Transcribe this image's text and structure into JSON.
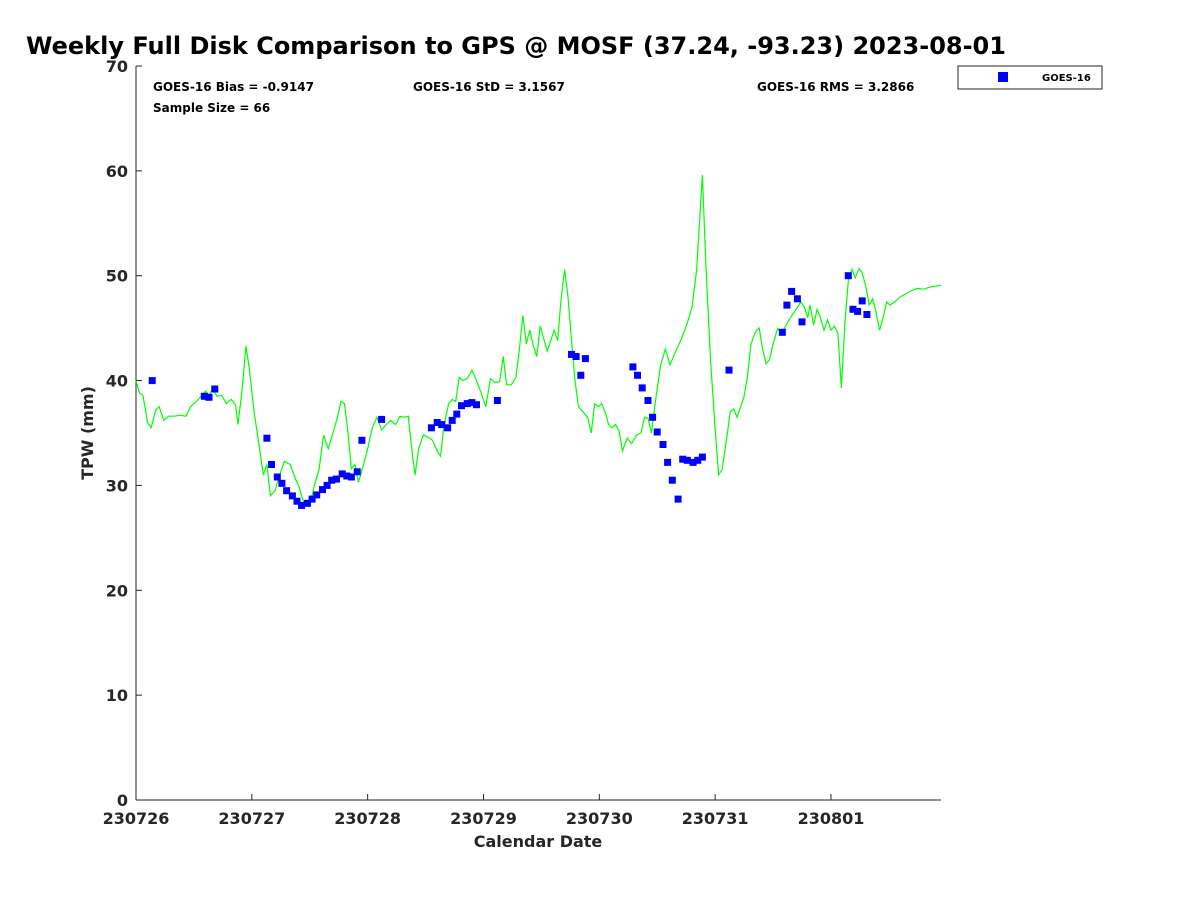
{
  "chart_data": {
    "type": "scatter",
    "title": "Weekly Full Disk Comparison to GPS @ MOSF (37.24, -93.23) 2023-08-01",
    "xlabel": "Calendar Date",
    "ylabel": "TPW (mm)",
    "xlim": [
      0,
      6.95
    ],
    "ylim": [
      0,
      70
    ],
    "x_ticks": [
      0,
      1,
      2,
      3,
      4,
      5,
      6
    ],
    "x_tick_labels": [
      "230726",
      "230727",
      "230728",
      "230729",
      "230730",
      "230731",
      "230801"
    ],
    "y_ticks": [
      0,
      10,
      20,
      30,
      40,
      50,
      60,
      70
    ],
    "y_tick_labels": [
      "0",
      "10",
      "20",
      "30",
      "40",
      "50",
      "60",
      "70"
    ],
    "stats": {
      "bias": "GOES-16 Bias = -0.9147",
      "std": "GOES-16 StD = 3.1567",
      "rms": "GOES-16 RMS = 3.2866",
      "sample_size": "Sample Size = 66"
    },
    "legend": {
      "label": "GOES-16",
      "position": "top-right-outside"
    },
    "colors": {
      "gps_line": "#00ff00",
      "goes_points": "#0000ff"
    },
    "series": [
      {
        "name": "GPS",
        "style": "line",
        "points": [
          [
            0.0,
            40.0
          ],
          [
            0.03,
            38.8
          ],
          [
            0.06,
            38.6
          ],
          [
            0.1,
            36.0
          ],
          [
            0.13,
            35.5
          ],
          [
            0.17,
            37.2
          ],
          [
            0.2,
            37.5
          ],
          [
            0.24,
            36.2
          ],
          [
            0.28,
            36.6
          ],
          [
            0.33,
            36.6
          ],
          [
            0.38,
            36.7
          ],
          [
            0.43,
            36.6
          ],
          [
            0.47,
            37.5
          ],
          [
            0.52,
            38.0
          ],
          [
            0.57,
            38.6
          ],
          [
            0.6,
            39.0
          ],
          [
            0.63,
            38.6
          ],
          [
            0.66,
            39.2
          ],
          [
            0.7,
            38.5
          ],
          [
            0.74,
            38.6
          ],
          [
            0.78,
            37.8
          ],
          [
            0.82,
            38.2
          ],
          [
            0.86,
            37.7
          ],
          [
            0.88,
            35.8
          ],
          [
            0.91,
            38.5
          ],
          [
            0.95,
            43.3
          ],
          [
            0.98,
            41.0
          ],
          [
            1.02,
            37.0
          ],
          [
            1.06,
            34.0
          ],
          [
            1.1,
            31.0
          ],
          [
            1.13,
            32.0
          ],
          [
            1.16,
            29.0
          ],
          [
            1.2,
            29.5
          ],
          [
            1.24,
            31.0
          ],
          [
            1.28,
            32.3
          ],
          [
            1.33,
            32.0
          ],
          [
            1.37,
            30.8
          ],
          [
            1.41,
            29.8
          ],
          [
            1.45,
            28.3
          ],
          [
            1.5,
            28.0
          ],
          [
            1.54,
            30.0
          ],
          [
            1.58,
            31.5
          ],
          [
            1.62,
            34.8
          ],
          [
            1.66,
            33.5
          ],
          [
            1.7,
            35.0
          ],
          [
            1.74,
            36.5
          ],
          [
            1.77,
            38.0
          ],
          [
            1.8,
            37.8
          ],
          [
            1.83,
            35.0
          ],
          [
            1.86,
            31.6
          ],
          [
            1.89,
            32.0
          ],
          [
            1.92,
            30.3
          ],
          [
            1.96,
            31.8
          ],
          [
            2.0,
            33.5
          ],
          [
            2.04,
            35.5
          ],
          [
            2.08,
            36.5
          ],
          [
            2.12,
            35.3
          ],
          [
            2.16,
            35.8
          ],
          [
            2.2,
            36.2
          ],
          [
            2.24,
            35.8
          ],
          [
            2.28,
            36.6
          ],
          [
            2.32,
            36.5
          ],
          [
            2.35,
            36.6
          ],
          [
            2.38,
            33.5
          ],
          [
            2.41,
            31.0
          ],
          [
            2.44,
            33.5
          ],
          [
            2.48,
            34.8
          ],
          [
            2.52,
            34.6
          ],
          [
            2.56,
            34.3
          ],
          [
            2.6,
            33.3
          ],
          [
            2.63,
            32.8
          ],
          [
            2.66,
            35.8
          ],
          [
            2.7,
            37.8
          ],
          [
            2.73,
            38.2
          ],
          [
            2.76,
            38.0
          ],
          [
            2.79,
            40.3
          ],
          [
            2.82,
            40.0
          ],
          [
            2.86,
            40.2
          ],
          [
            2.9,
            41.0
          ],
          [
            2.94,
            40.0
          ],
          [
            2.98,
            38.8
          ],
          [
            3.02,
            37.5
          ],
          [
            3.06,
            40.2
          ],
          [
            3.1,
            39.8
          ],
          [
            3.14,
            39.9
          ],
          [
            3.17,
            42.3
          ],
          [
            3.2,
            39.6
          ],
          [
            3.24,
            39.6
          ],
          [
            3.28,
            40.3
          ],
          [
            3.31,
            43.0
          ],
          [
            3.34,
            46.2
          ],
          [
            3.37,
            43.5
          ],
          [
            3.4,
            44.8
          ],
          [
            3.43,
            43.3
          ],
          [
            3.46,
            42.3
          ],
          [
            3.49,
            45.2
          ],
          [
            3.52,
            44.0
          ],
          [
            3.55,
            42.8
          ],
          [
            3.58,
            43.8
          ],
          [
            3.61,
            44.8
          ],
          [
            3.64,
            43.8
          ],
          [
            3.67,
            47.8
          ],
          [
            3.7,
            50.6
          ],
          [
            3.73,
            48.0
          ],
          [
            3.76,
            43.8
          ],
          [
            3.79,
            40.0
          ],
          [
            3.82,
            37.5
          ],
          [
            3.86,
            37.0
          ],
          [
            3.9,
            36.5
          ],
          [
            3.93,
            35.0
          ],
          [
            3.96,
            37.8
          ],
          [
            3.99,
            37.5
          ],
          [
            4.02,
            37.8
          ],
          [
            4.05,
            37.0
          ],
          [
            4.08,
            35.8
          ],
          [
            4.11,
            35.5
          ],
          [
            4.14,
            35.8
          ],
          [
            4.17,
            35.2
          ],
          [
            4.2,
            33.3
          ],
          [
            4.24,
            34.5
          ],
          [
            4.28,
            34.0
          ],
          [
            4.32,
            34.8
          ],
          [
            4.36,
            35.0
          ],
          [
            4.39,
            36.5
          ],
          [
            4.42,
            36.4
          ],
          [
            4.45,
            35.0
          ],
          [
            4.49,
            38.5
          ],
          [
            4.53,
            41.5
          ],
          [
            4.57,
            43.0
          ],
          [
            4.61,
            41.5
          ],
          [
            4.66,
            42.8
          ],
          [
            4.71,
            44.0
          ],
          [
            4.76,
            45.5
          ],
          [
            4.8,
            47.0
          ],
          [
            4.84,
            50.5
          ],
          [
            4.87,
            56.0
          ],
          [
            4.89,
            59.6
          ],
          [
            4.92,
            51.0
          ],
          [
            4.96,
            42.0
          ],
          [
            5.0,
            35.5
          ],
          [
            5.03,
            31.0
          ],
          [
            5.06,
            31.5
          ],
          [
            5.1,
            34.5
          ],
          [
            5.13,
            37.0
          ],
          [
            5.16,
            37.3
          ],
          [
            5.19,
            36.5
          ],
          [
            5.22,
            37.5
          ],
          [
            5.25,
            38.5
          ],
          [
            5.28,
            40.5
          ],
          [
            5.31,
            43.5
          ],
          [
            5.35,
            44.7
          ],
          [
            5.38,
            45.0
          ],
          [
            5.41,
            43.0
          ],
          [
            5.44,
            41.6
          ],
          [
            5.47,
            42.0
          ],
          [
            5.5,
            43.5
          ],
          [
            5.54,
            45.0
          ],
          [
            5.57,
            44.5
          ],
          [
            5.61,
            45.2
          ],
          [
            5.65,
            46.0
          ],
          [
            5.7,
            46.8
          ],
          [
            5.74,
            47.5
          ],
          [
            5.77,
            47.0
          ],
          [
            5.8,
            46.0
          ],
          [
            5.82,
            47.2
          ],
          [
            5.85,
            45.3
          ],
          [
            5.88,
            46.8
          ],
          [
            5.91,
            46.0
          ],
          [
            5.94,
            44.8
          ],
          [
            5.97,
            45.8
          ],
          [
            6.0,
            44.8
          ],
          [
            6.03,
            45.2
          ],
          [
            6.06,
            44.5
          ],
          [
            6.09,
            39.3
          ],
          [
            6.12,
            45.5
          ],
          [
            6.15,
            49.5
          ],
          [
            6.18,
            50.6
          ],
          [
            6.21,
            49.8
          ],
          [
            6.24,
            50.7
          ],
          [
            6.27,
            50.3
          ],
          [
            6.3,
            49.0
          ],
          [
            6.33,
            47.2
          ],
          [
            6.36,
            47.8
          ],
          [
            6.39,
            46.5
          ],
          [
            6.42,
            44.8
          ],
          [
            6.45,
            46.0
          ],
          [
            6.48,
            47.5
          ],
          [
            6.51,
            47.2
          ],
          [
            6.55,
            47.5
          ],
          [
            6.6,
            48.0
          ],
          [
            6.65,
            48.3
          ],
          [
            6.7,
            48.6
          ],
          [
            6.75,
            48.8
          ],
          [
            6.8,
            48.7
          ],
          [
            6.85,
            48.9
          ],
          [
            6.9,
            49.0
          ],
          [
            6.95,
            49.1
          ]
        ]
      },
      {
        "name": "GOES-16",
        "style": "markers",
        "points": [
          [
            0.14,
            40.0
          ],
          [
            0.59,
            38.5
          ],
          [
            0.63,
            38.4
          ],
          [
            0.68,
            39.2
          ],
          [
            1.13,
            34.5
          ],
          [
            1.17,
            32.0
          ],
          [
            1.22,
            30.8
          ],
          [
            1.26,
            30.2
          ],
          [
            1.3,
            29.5
          ],
          [
            1.35,
            29.0
          ],
          [
            1.39,
            28.5
          ],
          [
            1.43,
            28.1
          ],
          [
            1.48,
            28.3
          ],
          [
            1.52,
            28.7
          ],
          [
            1.56,
            29.1
          ],
          [
            1.61,
            29.6
          ],
          [
            1.65,
            30.0
          ],
          [
            1.69,
            30.5
          ],
          [
            1.73,
            30.6
          ],
          [
            1.78,
            31.1
          ],
          [
            1.82,
            30.9
          ],
          [
            1.86,
            30.8
          ],
          [
            1.91,
            31.3
          ],
          [
            1.95,
            34.3
          ],
          [
            2.12,
            36.3
          ],
          [
            2.55,
            35.5
          ],
          [
            2.6,
            36.0
          ],
          [
            2.64,
            35.8
          ],
          [
            2.69,
            35.5
          ],
          [
            2.73,
            36.2
          ],
          [
            2.77,
            36.8
          ],
          [
            2.81,
            37.6
          ],
          [
            2.86,
            37.8
          ],
          [
            2.9,
            37.9
          ],
          [
            2.94,
            37.7
          ],
          [
            3.12,
            38.1
          ],
          [
            3.76,
            42.5
          ],
          [
            3.8,
            42.3
          ],
          [
            3.84,
            40.5
          ],
          [
            3.88,
            42.1
          ],
          [
            4.29,
            41.3
          ],
          [
            4.33,
            40.5
          ],
          [
            4.37,
            39.3
          ],
          [
            4.42,
            38.1
          ],
          [
            4.46,
            36.5
          ],
          [
            4.5,
            35.1
          ],
          [
            4.55,
            33.9
          ],
          [
            4.59,
            32.2
          ],
          [
            4.63,
            30.5
          ],
          [
            4.68,
            28.7
          ],
          [
            4.72,
            32.5
          ],
          [
            4.76,
            32.4
          ],
          [
            4.81,
            32.2
          ],
          [
            4.85,
            32.4
          ],
          [
            4.89,
            32.7
          ],
          [
            5.12,
            41.0
          ],
          [
            5.58,
            44.6
          ],
          [
            5.62,
            47.2
          ],
          [
            5.66,
            48.5
          ],
          [
            5.71,
            47.8
          ],
          [
            5.75,
            45.6
          ],
          [
            6.15,
            50.0
          ],
          [
            6.19,
            46.8
          ],
          [
            6.23,
            46.6
          ],
          [
            6.27,
            47.6
          ],
          [
            6.31,
            46.3
          ]
        ]
      }
    ]
  }
}
